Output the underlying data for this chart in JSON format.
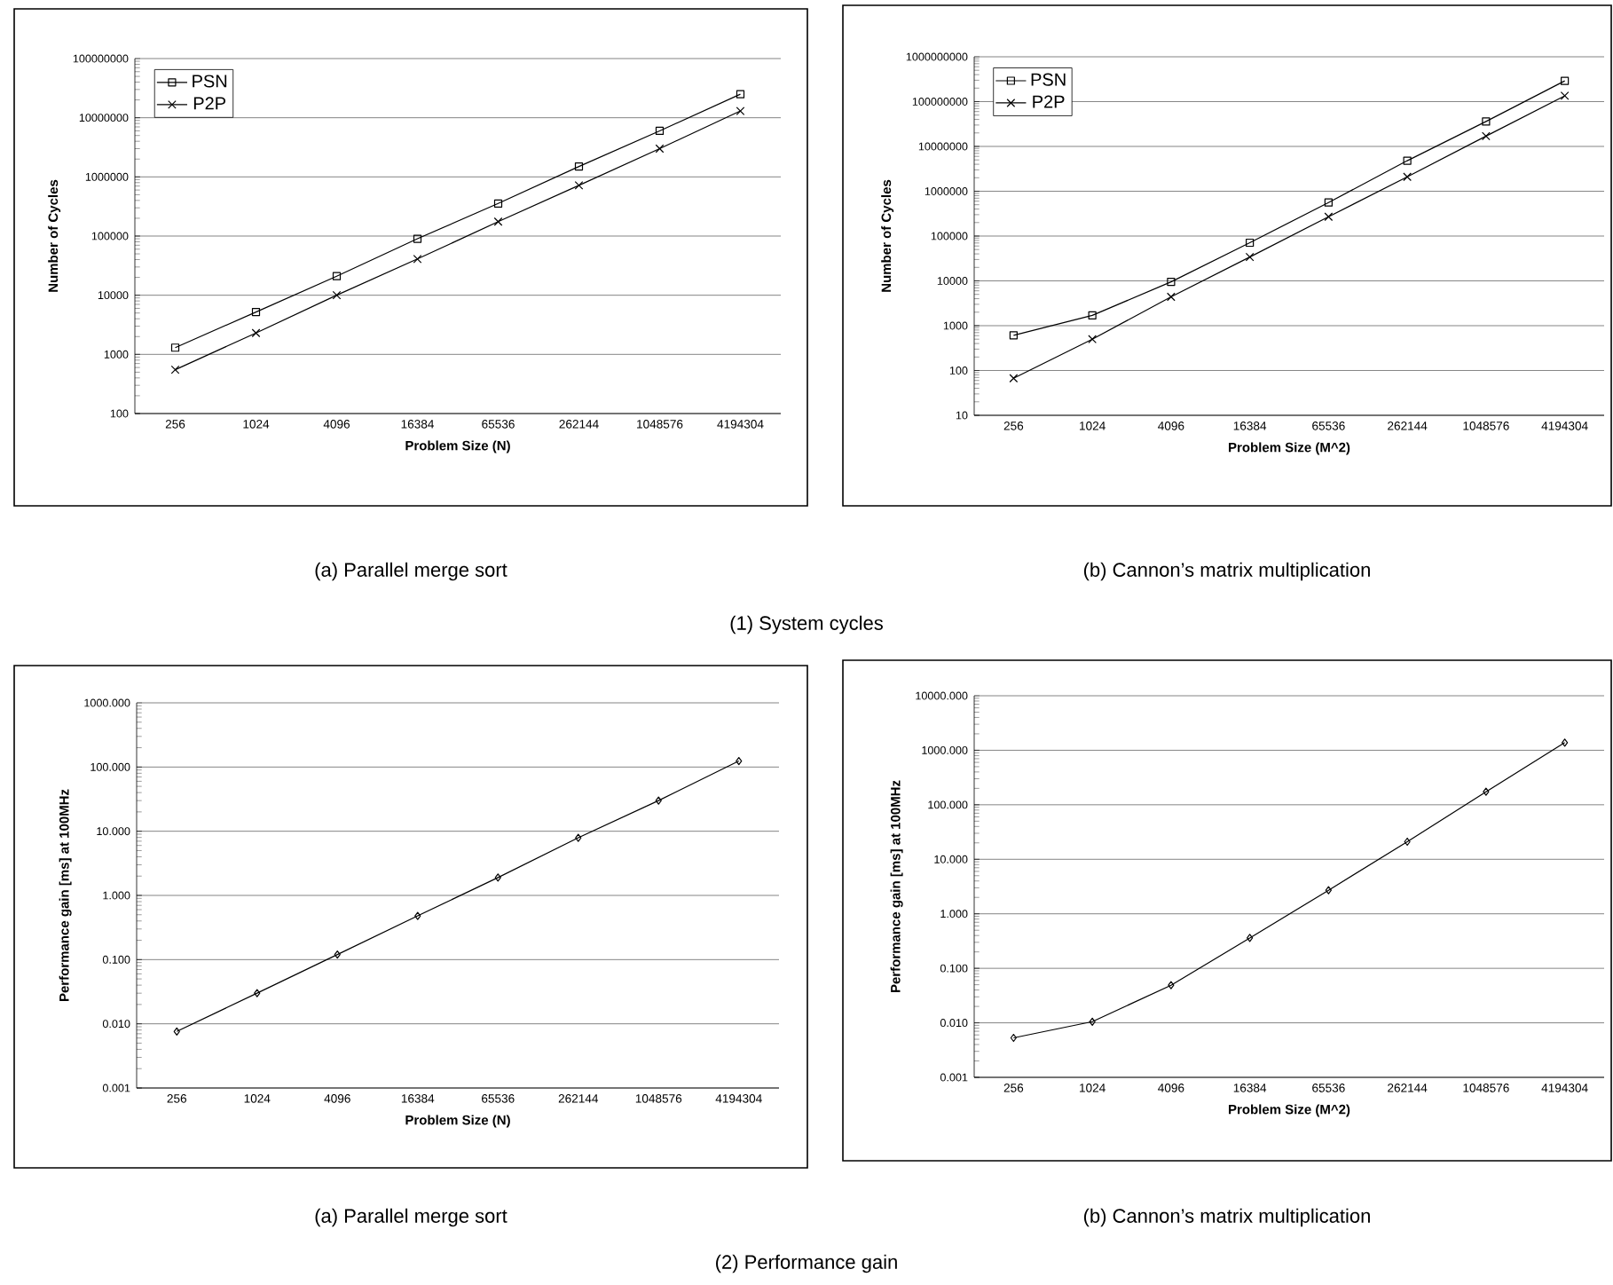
{
  "chart_data": [
    {
      "type": "line",
      "xlabel": "Problem Size (N)",
      "ylabel": "Number of Cycles",
      "log": true,
      "grid": "y",
      "legend": "top left",
      "categories": [
        "256",
        "1024",
        "4096",
        "16384",
        "65536",
        "262144",
        "1048576",
        "4194304"
      ],
      "ylim": [
        100,
        100000000
      ],
      "yticks": [
        100,
        1000,
        10000,
        100000,
        1000000,
        10000000,
        100000000
      ],
      "series": [
        {
          "name": "PSN",
          "color": "#000000",
          "marker": "square",
          "values": [
            1300,
            5200,
            21000,
            90000,
            355000,
            1500000,
            6000000,
            25000000
          ]
        },
        {
          "name": "P2P",
          "color": "#000000",
          "marker": "cross",
          "values": [
            550,
            2300,
            10000,
            41000,
            175000,
            720000,
            3000000,
            13000000
          ]
        }
      ],
      "annotations": [
        "(a) Parallel merge sort",
        "(1) System cycles"
      ]
    },
    {
      "type": "line",
      "xlabel": "Problem Size (M^2)",
      "ylabel": "Number of Cycles",
      "log": true,
      "grid": "y",
      "legend": "top left",
      "categories": [
        "256",
        "1024",
        "4096",
        "16384",
        "65536",
        "262144",
        "1048576",
        "4194304"
      ],
      "ylim": [
        10,
        1000000000
      ],
      "yticks": [
        10,
        100,
        1000,
        10000,
        100000,
        1000000,
        10000000,
        100000000,
        1000000000
      ],
      "series": [
        {
          "name": "PSN",
          "color": "#000000",
          "marker": "square",
          "values": [
            610,
            1700,
            9500,
            71000,
            560000,
            4800000,
            36000000,
            290000000
          ]
        },
        {
          "name": "P2P",
          "color": "#000000",
          "marker": "cross",
          "values": [
            67,
            500,
            4400,
            34000,
            270000,
            2100000,
            17000000,
            135000000
          ]
        }
      ],
      "annotations": [
        "(b) Cannon’s matrix multiplication"
      ]
    },
    {
      "type": "line",
      "xlabel": "Problem Size (N)",
      "ylabel": "Performance gain [ms] at 100MHz",
      "log": true,
      "grid": "y",
      "categories": [
        "256",
        "1024",
        "4096",
        "16384",
        "65536",
        "262144",
        "1048576",
        "4194304"
      ],
      "ylim": [
        0.001,
        1000
      ],
      "yticks": [
        {
          "value": 0.001,
          "label": "0.001"
        },
        {
          "value": 0.01,
          "label": "0.010"
        },
        {
          "value": 0.1,
          "label": "0.100"
        },
        {
          "value": 1,
          "label": "1.000"
        },
        {
          "value": 10,
          "label": "10.000"
        },
        {
          "value": 100,
          "label": "100.000"
        },
        {
          "value": 1000,
          "label": "1000.000"
        }
      ],
      "series": [
        {
          "color": "#000000",
          "marker": "diamond",
          "values": [
            0.0076,
            0.03,
            0.12,
            0.48,
            1.9,
            7.9,
            30,
            124
          ]
        }
      ],
      "annotations": [
        "(a) Parallel merge sort",
        "(2) Performance gain"
      ]
    },
    {
      "type": "line",
      "xlabel": "Problem Size (M^2)",
      "ylabel": "Performance gain [ms] at 100MHz",
      "log": true,
      "grid": "y",
      "categories": [
        "256",
        "1024",
        "4096",
        "16384",
        "65536",
        "262144",
        "1048576",
        "4194304"
      ],
      "ylim": [
        0.001,
        10000
      ],
      "yticks": [
        {
          "value": 0.001,
          "label": "0.001"
        },
        {
          "value": 0.01,
          "label": "0.010"
        },
        {
          "value": 0.1,
          "label": "0.100"
        },
        {
          "value": 1,
          "label": "1.000"
        },
        {
          "value": 10,
          "label": "10.000"
        },
        {
          "value": 100,
          "label": "100.000"
        },
        {
          "value": 1000,
          "label": "1000.000"
        },
        {
          "value": 10000,
          "label": "10000.000"
        }
      ],
      "series": [
        {
          "color": "#000000",
          "marker": "diamond",
          "values": [
            0.0053,
            0.0105,
            0.049,
            0.36,
            2.7,
            21,
            173,
            1380
          ]
        }
      ],
      "annotations": [
        "(b) Cannon’s matrix multiplication"
      ]
    }
  ]
}
